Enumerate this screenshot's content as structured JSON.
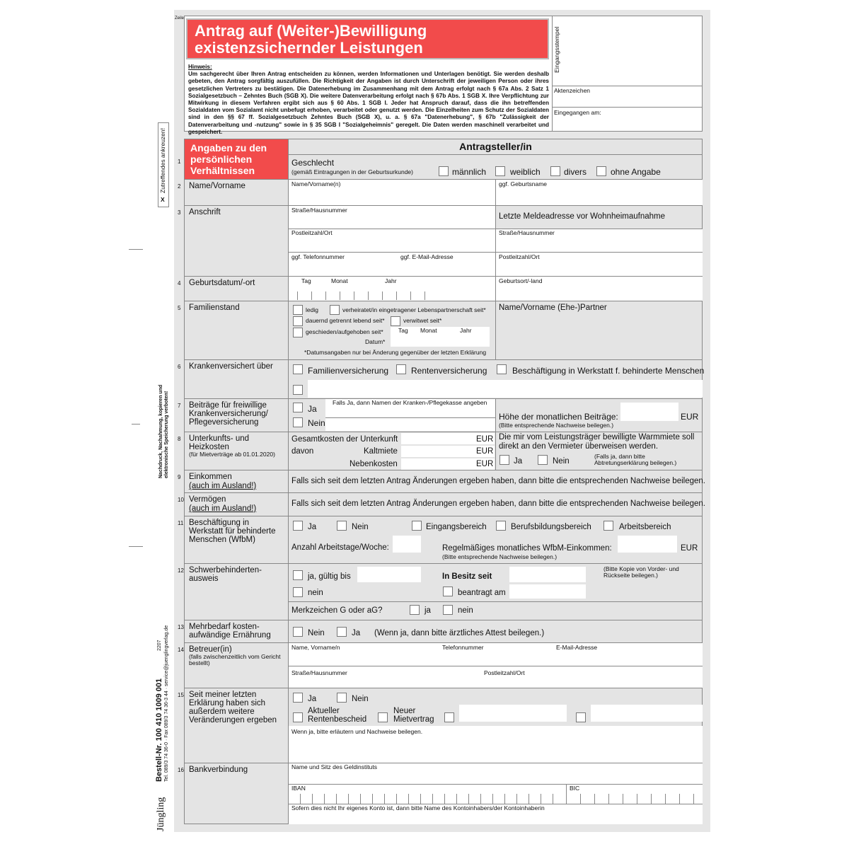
{
  "header": {
    "zeile": "Zeile",
    "title_line1": "Antrag auf (Weiter-)Bewilligung",
    "title_line2": "existenzsichernder Leistungen",
    "hinweis_title": "Hinweis:",
    "hinweis_text": "Um sachgerecht über Ihren Antrag entscheiden zu können, werden Informationen und Unterlagen benötigt. Sie werden deshalb gebeten, den Antrag sorgfältig auszufüllen. Die Richtigkeit der Angaben ist durch Unterschrift der jeweiligen Person oder ihres gesetzlichen Vertreters zu bestätigen. Die Datenerhebung im Zusammenhang mit dem Antrag erfolgt nach § 67a Abs. 2 Satz 1 Sozialgesetzbuch – Zehntes Buch (SGB X). Die weitere Datenverarbeitung erfolgt nach § 67b Abs. 1 SGB X. Ihre Verpflichtung zur Mitwirkung in diesem Verfahren ergibt sich aus § 60 Abs. 1 SGB I. Jeder hat Anspruch darauf, dass die ihn betreffenden Sozialdaten vom Sozialamt nicht unbefugt erhoben, verarbeitet oder genutzt werden. Die Einzelheiten zum Schutz der Sozialdaten sind in den §§ 67 ff. Sozialgesetzbuch Zehntes Buch (SGB X), u. a. § 67a \"Datenerhebung\", § 67b \"Zulässigkeit der Datenverarbeitung und -nutzung\" sowie in § 35 SGB I \"Sozialgeheimnis\" geregelt. Die Daten werden maschinell verarbeitet und gespeichert.",
    "eingangsstempel": "Eingangsstempel",
    "aktenzeichen": "Aktenzeichen",
    "eingegangen": "Eingegangen am:"
  },
  "margin": {
    "zutreffendes": "Zutreffendes ankreuzen!",
    "x": "X",
    "copyright": "Nachdruck, Nachahmung, kopieren und elektronische Speicherung verboten!",
    "bestell": "Bestell-Nr. 100 410 1009 001",
    "contact": "Tel. 089/3 74 36-0 · Fax 089/3 74 36-3 44 · service@juenglingverlag.de",
    "code": "2207",
    "logo": "Jüngling"
  },
  "section": {
    "title": "Angaben zu den persönlichen Verhältnissen",
    "col_title": "Antragsteller/in"
  },
  "rows": {
    "r1": {
      "n": "1",
      "geschlecht": "Geschlecht",
      "hint": "(gemäß Eintragungen in der Geburtsurkunde)",
      "opts": [
        "männlich",
        "weiblich",
        "divers",
        "ohne Angabe"
      ]
    },
    "r2": {
      "n": "2",
      "label": "Name/Vorname",
      "f1": "Name/Vorname(n)",
      "f2": "ggf. Geburtsname"
    },
    "r3": {
      "n": "3",
      "label": "Anschrift",
      "f1": "Straße/Hausnummer",
      "f2": "Postleitzahl/Ort",
      "f3": "ggf. Telefonnummer",
      "f4": "ggf. E-Mail-Adresse",
      "r_title": "Letzte Meldeadresse vor Wohnheimaufnahme",
      "r1": "Straße/Hausnummer",
      "r2": "Postleitzahl/Ort"
    },
    "r4": {
      "n": "4",
      "label": "Geburtsdatum/-ort",
      "tag": "Tag",
      "monat": "Monat",
      "jahr": "Jahr",
      "ort": "Geburtsort/-land"
    },
    "r5": {
      "n": "5",
      "label": "Familienstand",
      "ledig": "ledig",
      "verh": "verheiratet/in eingetragener Lebenspartnerschaft seit*",
      "getrennt": "dauernd getrennt lebend seit*",
      "verwitwet": "verwitwet seit*",
      "geschieden": "geschieden/aufgehoben seit*",
      "tag": "Tag",
      "monat": "Monat",
      "jahr": "Jahr",
      "datum": "Datum*",
      "note": "*Datumsangaben nur bei Änderung gegenüber der letzten Erklärung",
      "partner": "Name/Vorname (Ehe-)Partner"
    },
    "r6": {
      "n": "6",
      "label": "Krankenversichert über",
      "opts": [
        "Familienversicherung",
        "Rentenversicherung",
        "Beschäftigung in Werkstatt f. behinderte Menschen"
      ]
    },
    "r7": {
      "n": "7",
      "label": "Beiträge für freiwillige Krankenversicherung/ Pflegeversicherung",
      "ja": "Ja",
      "nein": "Nein",
      "kasse": "Falls Ja, dann Namen der Kranken-/Pflegekasse angeben",
      "hoehe": "Höhe der monatlichen Beiträge:",
      "eur": "EUR",
      "hint": "(Bitte entsprechende Nachweise beilegen.)"
    },
    "r8": {
      "n": "8",
      "label": "Unterkunfts- und Heizkosten",
      "sub": "(für Mietverträge ab 01.01.2020)",
      "gesamt": "Gesamtkosten der Unterkunft",
      "davon": "davon",
      "kalt": "Kaltmiete",
      "neben": "Nebenkosten",
      "eur": "EUR",
      "warm": "Die mir vom Leistungsträger bewilligte Warmmiete soll direkt an den Vermieter überweisen werden.",
      "ja": "Ja",
      "nein": "Nein",
      "hint": "(Falls ja, dann bitte Abtretungserklärung beilegen.)"
    },
    "r9": {
      "n": "9",
      "label": "Einkommen",
      "sub": "(auch im Ausland!)",
      "text": "Falls sich seit dem letzten Antrag Änderungen ergeben haben, dann bitte die entsprechenden Nachweise beilegen."
    },
    "r10": {
      "n": "10",
      "label": "Vermögen",
      "sub": "(auch im Ausland!)",
      "text": "Falls sich seit dem letzten Antrag Änderungen ergeben haben, dann bitte die entsprechenden Nachweise beilegen."
    },
    "r11": {
      "n": "11",
      "label": "Beschäftigung in Werkstatt für behinderte Menschen (WfbM)",
      "ja": "Ja",
      "nein": "Nein",
      "opts": [
        "Eingangsbereich",
        "Berufsbildungsbereich",
        "Arbeitsbereich"
      ],
      "tage": "Anzahl Arbeitstage/Woche:",
      "eink": "Regelmäßiges monatliches WfbM-Einkommen:",
      "eur": "EUR",
      "hint": "(Bitte entsprechende Nachweise beilegen.)"
    },
    "r12": {
      "n": "12",
      "label": "Schwerbehinderten-ausweis",
      "ja": "ja, gültig bis",
      "besitz": "In Besitz seit",
      "kopie": "(Bitte Kopie von Vorder- und Rückseite beilegen.)",
      "nein": "nein",
      "beantragt": "beantragt am",
      "merk": "Merkzeichen G oder aG?",
      "mja": "ja",
      "mnein": "nein"
    },
    "r13": {
      "n": "13",
      "label": "Mehrbedarf kosten-aufwändige Ernährung",
      "nein": "Nein",
      "ja": "Ja",
      "text": "(Wenn ja, dann bitte ärztliches Attest beilegen.)"
    },
    "r14": {
      "n": "14",
      "label": "Betreuer(in)",
      "sub": "(falls zwischenzeitlich vom Gericht bestellt)",
      "name": "Name, Vorname/n",
      "tel": "Telefonnummer",
      "mail": "E-Mail-Adresse",
      "str": "Straße/Hausnummer",
      "plz": "Postleitzahl/Ort"
    },
    "r15": {
      "n": "15",
      "label": "Seit meiner letzten Erklärung haben sich außerdem weitere Veränderungen ergeben",
      "ja": "Ja",
      "nein": "Nein",
      "renten": "Aktueller Rentenbescheid",
      "miet": "Neuer Mietvertrag",
      "text": "Wenn ja, bitte erläutern und Nachweise beilegen."
    },
    "r16": {
      "n": "16",
      "label": "Bankverbindung",
      "inst": "Name und Sitz des Geldinstituts",
      "iban": "IBAN",
      "bic": "BIC",
      "text": "Sofern dies nicht Ihr eigenes Konto ist, dann bitte Name des Kontoinhabers/der Kontoinhaberin"
    }
  },
  "colors": {
    "accent": "#f24b4b",
    "sheet": "#e6e6e6"
  }
}
